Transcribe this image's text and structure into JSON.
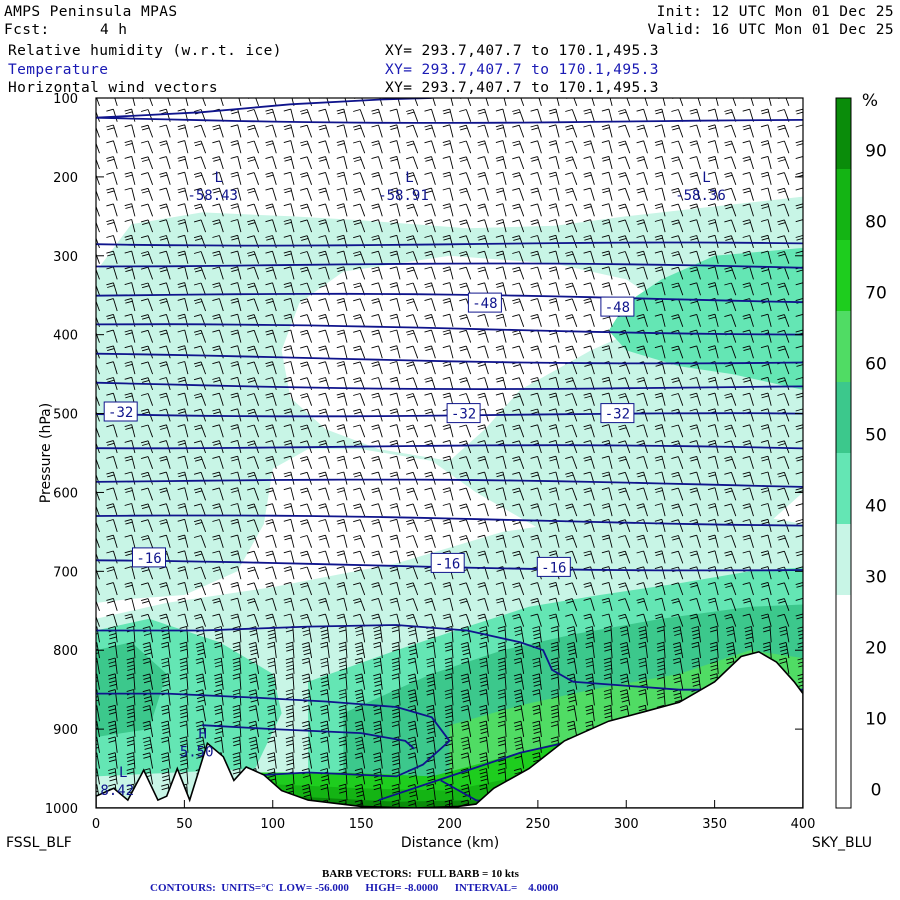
{
  "header": {
    "model": "AMPS Peninsula MPAS",
    "fcst_label": "Fcst:",
    "fcst_value": "4 h",
    "init": "Init: 12 UTC Mon 01 Dec 25",
    "valid": "Valid: 16 UTC Mon 01 Dec 25",
    "fields": [
      {
        "name": "Relative humidity (w.r.t. ice)",
        "xy": "XY= 293.7,407.7 to 170.1,495.3"
      },
      {
        "name": "Temperature",
        "xy": "XY= 293.7,407.7 to 170.1,495.3"
      },
      {
        "name": "Horizontal wind vectors",
        "xy": "XY= 293.7,407.7 to 170.1,495.3"
      }
    ]
  },
  "footer": {
    "barb_text": "BARB VECTORS:  FULL BARB = 10 kts",
    "contours_text": "CONTOURS:  UNITS=°C  LOW= -56.000      HIGH= -8.0000      INTERVAL=    4.0000"
  },
  "colors": {
    "contour": "#0f148c",
    "rh_30": "#c8f5e6",
    "rh_40": "#64e6b4",
    "rh_50": "#3cc88c",
    "rh_60": "#50dc64",
    "rh_70": "#1ecd1e",
    "rh_80": "#14b414",
    "rh_90": "#0a8c0a",
    "rh_100": "#006400"
  },
  "chart_data": {
    "type": "cross-section",
    "xlabel": "Distance (km)",
    "ylabel": "Pressure (hPa)",
    "x_ticks": [
      0,
      50,
      100,
      150,
      200,
      250,
      300,
      350,
      400
    ],
    "y_ticks": [
      100,
      200,
      300,
      400,
      500,
      600,
      700,
      800,
      900,
      1000
    ],
    "xlim": [
      0,
      400
    ],
    "ylim": [
      100,
      1000
    ],
    "left_station": "FSSL_BLF",
    "right_station": "SKY_BLU",
    "colorbar": {
      "unit": "%",
      "ticks": [
        0,
        10,
        20,
        30,
        40,
        50,
        60,
        70,
        80,
        90
      ],
      "bands": [
        {
          "from": 0,
          "to": 30,
          "color": "#ffffff"
        },
        {
          "from": 30,
          "to": 40,
          "color": "#c8f5e6"
        },
        {
          "from": 40,
          "to": 50,
          "color": "#64e6b4"
        },
        {
          "from": 50,
          "to": 60,
          "color": "#3cc88c"
        },
        {
          "from": 60,
          "to": 70,
          "color": "#50dc64"
        },
        {
          "from": 70,
          "to": 80,
          "color": "#1ecd1e"
        },
        {
          "from": 80,
          "to": 90,
          "color": "#14b414"
        },
        {
          "from": 90,
          "to": 100,
          "color": "#0a8c0a"
        }
      ]
    },
    "contour_labels": [
      {
        "text": "-48",
        "x": 220,
        "p": 360
      },
      {
        "text": "-48",
        "x": 295,
        "p": 365
      },
      {
        "text": "-32",
        "x": 14,
        "p": 498
      },
      {
        "text": "-32",
        "x": 208,
        "p": 500
      },
      {
        "text": "-32",
        "x": 295,
        "p": 500
      },
      {
        "text": "-16",
        "x": 30,
        "p": 683
      },
      {
        "text": "-16",
        "x": 199,
        "p": 690
      },
      {
        "text": "-16",
        "x": 259,
        "p": 695
      }
    ],
    "extrema": [
      {
        "type": "L",
        "value": "-58.43",
        "x": 66,
        "p": 222
      },
      {
        "type": "L",
        "value": "-58.91",
        "x": 174,
        "p": 222
      },
      {
        "type": "L",
        "value": "-58.36",
        "x": 342,
        "p": 222
      },
      {
        "type": "H",
        "value": "5.50",
        "x": 57,
        "p": 927
      },
      {
        "type": "L",
        "value": "8.42",
        "x": 12,
        "p": 976
      }
    ],
    "isotherms_p": [
      125,
      282,
      310,
      350,
      390,
      428,
      462,
      498,
      540,
      585,
      632,
      690
    ],
    "terrain": [
      {
        "x": 0,
        "p": 985
      },
      {
        "x": 10,
        "p": 975
      },
      {
        "x": 18,
        "p": 990
      },
      {
        "x": 27,
        "p": 952
      },
      {
        "x": 35,
        "p": 990
      },
      {
        "x": 40,
        "p": 985
      },
      {
        "x": 46,
        "p": 950
      },
      {
        "x": 53,
        "p": 990
      },
      {
        "x": 63,
        "p": 918
      },
      {
        "x": 72,
        "p": 935
      },
      {
        "x": 78,
        "p": 965
      },
      {
        "x": 85,
        "p": 948
      },
      {
        "x": 95,
        "p": 958
      },
      {
        "x": 105,
        "p": 978
      },
      {
        "x": 120,
        "p": 990
      },
      {
        "x": 150,
        "p": 998
      },
      {
        "x": 180,
        "p": 1000
      },
      {
        "x": 205,
        "p": 998
      },
      {
        "x": 215,
        "p": 995
      },
      {
        "x": 225,
        "p": 975
      },
      {
        "x": 245,
        "p": 950
      },
      {
        "x": 265,
        "p": 915
      },
      {
        "x": 290,
        "p": 890
      },
      {
        "x": 310,
        "p": 878
      },
      {
        "x": 330,
        "p": 866
      },
      {
        "x": 350,
        "p": 840
      },
      {
        "x": 365,
        "p": 808
      },
      {
        "x": 375,
        "p": 802
      },
      {
        "x": 385,
        "p": 815
      },
      {
        "x": 395,
        "p": 840
      },
      {
        "x": 400,
        "p": 855
      }
    ]
  }
}
